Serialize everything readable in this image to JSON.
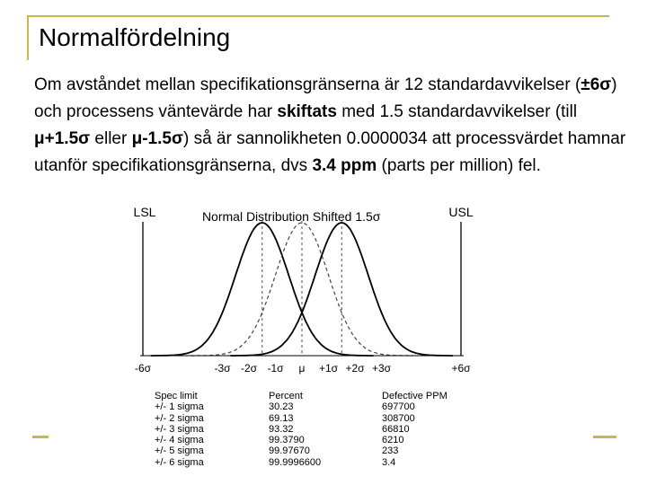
{
  "slide": {
    "title": "Normalfördelning",
    "paragraph": {
      "t1": "Om avståndet mellan specifikationsgränserna är 12 standardavvikelser (",
      "t2": "±6σ",
      "t3": ") och processens väntevärde har ",
      "t4": "skiftats",
      "t5": " med 1.5 standardavvikelser  (till ",
      "t6": "μ+1.5σ",
      "t7": " eller ",
      "t8": "μ-1.5σ",
      "t9": ") så är sannolikheten 0.0000034 att processvärdet hamnar utanför specifikationsgränserna, dvs ",
      "t10": "3.4 ppm",
      "t11": " (parts per million) fel."
    },
    "colors": {
      "accent": "#c9b650"
    }
  },
  "figure": {
    "chart_data": {
      "type": "line",
      "title": "Normal Distribution Shifted 1.5σ",
      "limits": {
        "lsl_label": "LSL",
        "usl_label": "USL",
        "lsl": -6,
        "usl": 6
      },
      "series": [
        {
          "mean": -1.5,
          "sd": 1,
          "style": "solid"
        },
        {
          "mean": 0,
          "sd": 1,
          "style": "dashed"
        },
        {
          "mean": 1.5,
          "sd": 1,
          "style": "solid"
        }
      ],
      "dashed_lines": [
        -1.5,
        0,
        1.5
      ],
      "xticks": [
        {
          "value": -6,
          "label": "-6σ"
        },
        {
          "value": -3,
          "label": "-3σ"
        },
        {
          "value": -2,
          "label": "-2σ"
        },
        {
          "value": -1,
          "label": "-1σ"
        },
        {
          "value": 0,
          "label": "μ"
        },
        {
          "value": 1,
          "label": "+1σ"
        },
        {
          "value": 2,
          "label": "+2σ"
        },
        {
          "value": 3,
          "label": "+3σ"
        },
        {
          "value": 6,
          "label": "+6σ"
        }
      ],
      "xlim": [
        -6,
        6
      ]
    },
    "table": {
      "headers": [
        "Spec limit",
        "Percent",
        "Defective PPM"
      ],
      "rows": [
        [
          "+/- 1 sigma",
          "30.23",
          "697700"
        ],
        [
          "+/- 2 sigma",
          "69.13",
          "308700"
        ],
        [
          "+/- 3 sigma",
          "93.32",
          "66810"
        ],
        [
          "+/- 4 sigma",
          "99.3790",
          "6210"
        ],
        [
          "+/- 5 sigma",
          "99.97670",
          "233"
        ],
        [
          "+/- 6 sigma",
          "99.9996600",
          "3.4"
        ]
      ]
    }
  }
}
